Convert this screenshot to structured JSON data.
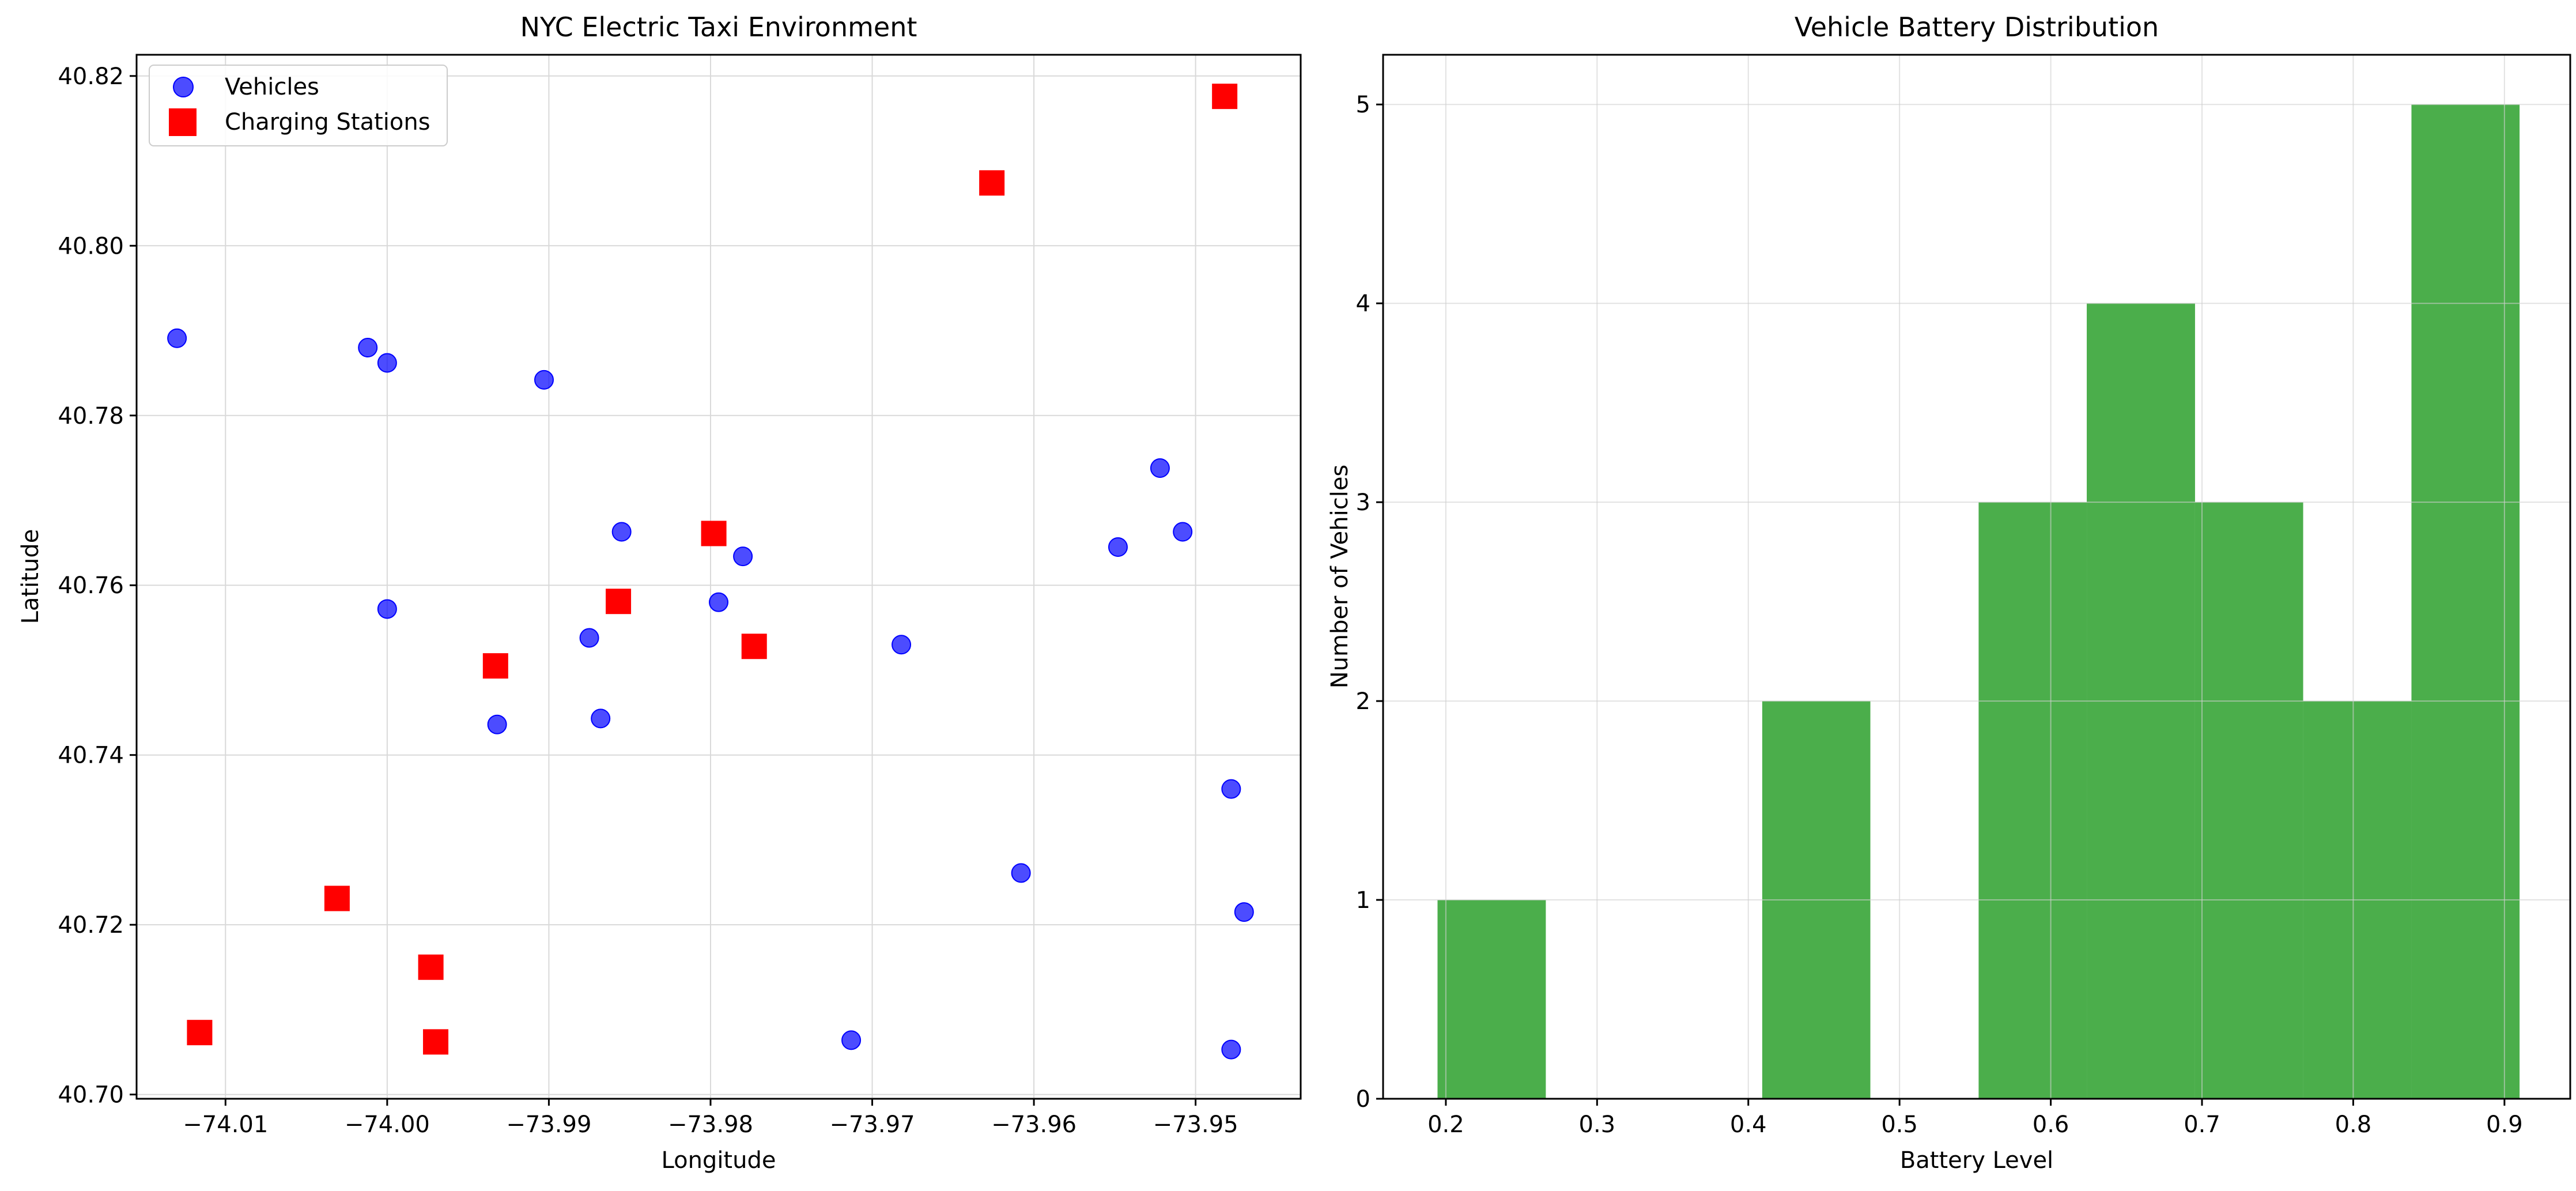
{
  "colors": {
    "vehicles": "#0000ff",
    "charging_stations": "#ff0000",
    "histogram_bars": "#2ca02c",
    "grid": "#d9d9d9",
    "axes": "#000000"
  },
  "chart_data": [
    {
      "type": "scatter",
      "title": "NYC Electric Taxi Environment",
      "xlabel": "Longitude",
      "ylabel": "Latitude",
      "xlim": [
        -74.0155,
        -73.9435
      ],
      "ylim": [
        40.6995,
        40.8225
      ],
      "xticks": [
        -74.01,
        -74.0,
        -73.99,
        -73.98,
        -73.97,
        -73.96,
        -73.95
      ],
      "xtick_labels": [
        "−74.01",
        "−74.00",
        "−73.99",
        "−73.98",
        "−73.97",
        "−73.96",
        "−73.95"
      ],
      "yticks": [
        40.7,
        40.72,
        40.74,
        40.76,
        40.78,
        40.8,
        40.82
      ],
      "ytick_labels": [
        "40.70",
        "40.72",
        "40.74",
        "40.76",
        "40.78",
        "40.80",
        "40.82"
      ],
      "grid": true,
      "legend_position": "top-left",
      "series": [
        {
          "name": "Vehicles",
          "marker": "circle",
          "color": "#0000ff",
          "points": [
            {
              "x": -74.013,
              "y": 40.7891
            },
            {
              "x": -74.0012,
              "y": 40.788
            },
            {
              "x": -74.0,
              "y": 40.7862
            },
            {
              "x": -73.9903,
              "y": 40.7842
            },
            {
              "x": -74.0,
              "y": 40.7572
            },
            {
              "x": -73.9932,
              "y": 40.7436
            },
            {
              "x": -73.9875,
              "y": 40.7538
            },
            {
              "x": -73.9868,
              "y": 40.7443
            },
            {
              "x": -73.9855,
              "y": 40.7663
            },
            {
              "x": -73.9795,
              "y": 40.758
            },
            {
              "x": -73.978,
              "y": 40.7634
            },
            {
              "x": -73.9682,
              "y": 40.753
            },
            {
              "x": -73.9548,
              "y": 40.7645
            },
            {
              "x": -73.9522,
              "y": 40.7738
            },
            {
              "x": -73.9508,
              "y": 40.7663
            },
            {
              "x": -73.9608,
              "y": 40.7261
            },
            {
              "x": -73.9713,
              "y": 40.7064
            },
            {
              "x": -73.9478,
              "y": 40.736
            },
            {
              "x": -73.947,
              "y": 40.7215
            },
            {
              "x": -73.9478,
              "y": 40.7053
            }
          ]
        },
        {
          "name": "Charging Stations",
          "marker": "square",
          "color": "#ff0000",
          "points": [
            {
              "x": -74.0116,
              "y": 40.7073
            },
            {
              "x": -74.0031,
              "y": 40.7231
            },
            {
              "x": -73.9973,
              "y": 40.715
            },
            {
              "x": -73.997,
              "y": 40.7062
            },
            {
              "x": -73.9933,
              "y": 40.7505
            },
            {
              "x": -73.9857,
              "y": 40.7581
            },
            {
              "x": -73.9798,
              "y": 40.7661
            },
            {
              "x": -73.9773,
              "y": 40.7528
            },
            {
              "x": -73.9626,
              "y": 40.8074
            },
            {
              "x": -73.9482,
              "y": 40.8176
            }
          ]
        }
      ]
    },
    {
      "type": "bar",
      "subtype": "histogram",
      "title": "Vehicle Battery Distribution",
      "xlabel": "Battery Level",
      "ylabel": "Number of Vehicles",
      "xlim": [
        0.1585,
        0.9435
      ],
      "ylim": [
        0,
        5.25
      ],
      "xticks": [
        0.2,
        0.3,
        0.4,
        0.5,
        0.6,
        0.7,
        0.8,
        0.9
      ],
      "xtick_labels": [
        "0.2",
        "0.3",
        "0.4",
        "0.5",
        "0.6",
        "0.7",
        "0.8",
        "0.9"
      ],
      "yticks": [
        0,
        1,
        2,
        3,
        4,
        5
      ],
      "ytick_labels": [
        "0",
        "1",
        "2",
        "3",
        "4",
        "5"
      ],
      "grid": true,
      "bins": [
        {
          "x0": 0.1945,
          "x1": 0.2661,
          "count": 1
        },
        {
          "x0": 0.2661,
          "x1": 0.3376,
          "count": 0
        },
        {
          "x0": 0.3376,
          "x1": 0.4092,
          "count": 0
        },
        {
          "x0": 0.4092,
          "x1": 0.4807,
          "count": 2
        },
        {
          "x0": 0.4807,
          "x1": 0.5523,
          "count": 0
        },
        {
          "x0": 0.5523,
          "x1": 0.6238,
          "count": 3
        },
        {
          "x0": 0.6238,
          "x1": 0.6954,
          "count": 4
        },
        {
          "x0": 0.6954,
          "x1": 0.7669,
          "count": 3
        },
        {
          "x0": 0.7669,
          "x1": 0.8385,
          "count": 2
        },
        {
          "x0": 0.8385,
          "x1": 0.91,
          "count": 5
        }
      ]
    }
  ]
}
